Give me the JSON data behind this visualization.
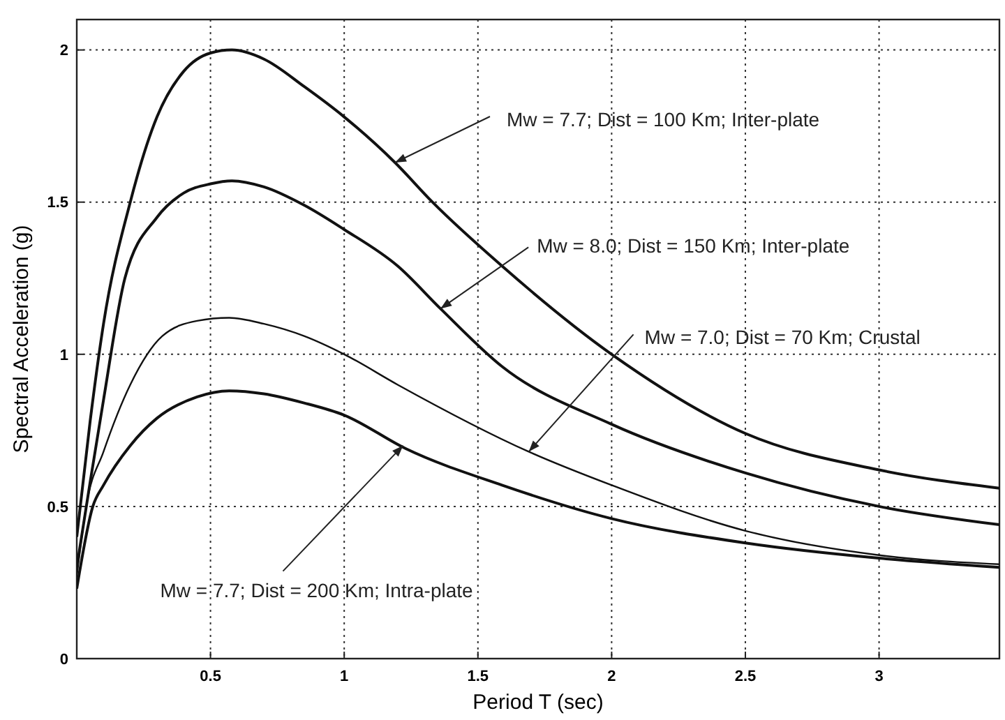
{
  "chart_data": {
    "type": "line",
    "xlabel": "Period T (sec)",
    "ylabel": "Spectral Acceleration (g)",
    "xlim": [
      0,
      3.45
    ],
    "ylim": [
      0,
      2.1
    ],
    "xticks": [
      0.5,
      1,
      1.5,
      2,
      2.5,
      3
    ],
    "yticks": [
      0,
      0.5,
      1,
      1.5,
      2
    ],
    "grid": true,
    "line_style": "solid",
    "series": [
      {
        "color": "#111111",
        "x": [
          0,
          0.05,
          0.1,
          0.2,
          0.3,
          0.4,
          0.5,
          0.58,
          0.7,
          0.85,
          1,
          1.19,
          1.33,
          1.59,
          2,
          2.5,
          3,
          3.45
        ],
        "values": [
          0.4,
          0.78,
          1.1,
          1.5,
          1.78,
          1.93,
          1.99,
          2.0,
          1.97,
          1.88,
          1.78,
          1.63,
          1.5,
          1.29,
          1.0,
          0.74,
          0.62,
          0.56
        ]
      },
      {
        "color": "#111111",
        "x": [
          0,
          0.05,
          0.1,
          0.18,
          0.3,
          0.4,
          0.5,
          0.58,
          0.7,
          0.85,
          1,
          1.2,
          1.36,
          1.59,
          2,
          2.5,
          3,
          3.45
        ],
        "values": [
          0.3,
          0.58,
          0.85,
          1.25,
          1.45,
          1.53,
          1.56,
          1.57,
          1.55,
          1.49,
          1.41,
          1.29,
          1.15,
          0.96,
          0.77,
          0.61,
          0.5,
          0.44
        ]
      },
      {
        "color": "#111111",
        "x": [
          0,
          0.035,
          0.1,
          0.2,
          0.32,
          0.45,
          0.57,
          0.7,
          0.85,
          1,
          1.2,
          1.69,
          2,
          2.5,
          3,
          3.45
        ],
        "values": [
          0.27,
          0.5,
          0.68,
          0.9,
          1.06,
          1.11,
          1.12,
          1.1,
          1.06,
          1.0,
          0.9,
          0.68,
          0.57,
          0.42,
          0.34,
          0.31
        ]
      },
      {
        "color": "#111111",
        "x": [
          0,
          0.06,
          0.1,
          0.2,
          0.3,
          0.45,
          0.57,
          0.7,
          0.85,
          1,
          1.23,
          1.59,
          2,
          2.5,
          3,
          3.45
        ],
        "values": [
          0.23,
          0.5,
          0.57,
          0.7,
          0.79,
          0.86,
          0.88,
          0.87,
          0.84,
          0.8,
          0.69,
          0.57,
          0.46,
          0.38,
          0.33,
          0.3
        ]
      }
    ],
    "annotations": [
      {
        "text": "Mw = 7.7; Dist = 100 Km; Inter-plate",
        "x": 1.19,
        "y": 1.63
      },
      {
        "text": "Mw = 8.0; Dist = 150 Km; Inter-plate",
        "x": 1.36,
        "y": 1.15
      },
      {
        "text": "Mw = 7.0; Dist = 70 Km; Crustal",
        "x": 1.69,
        "y": 0.68
      },
      {
        "text": "Mw = 7.7; Dist = 200 Km; Intra-plate",
        "x": 1.22,
        "y": 0.7
      }
    ]
  }
}
